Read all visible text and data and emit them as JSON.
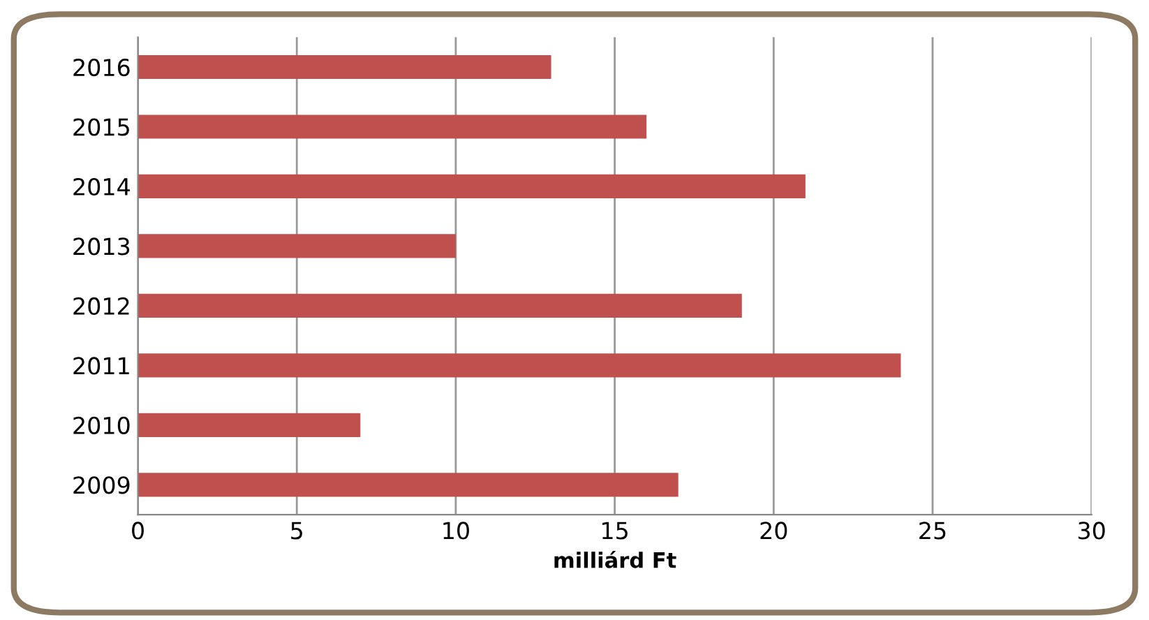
{
  "chart_data": {
    "type": "bar",
    "orientation": "horizontal",
    "categories": [
      "2016",
      "2015",
      "2014",
      "2013",
      "2012",
      "2011",
      "2010",
      "2009"
    ],
    "values": [
      13,
      16,
      21,
      10,
      19,
      24,
      7,
      17
    ],
    "color": "#c0504d",
    "xlabel": "milliárd Ft",
    "xlim": [
      0,
      30
    ],
    "xticks": [
      0,
      5,
      10,
      15,
      20,
      25,
      30
    ],
    "grid": "x",
    "legend": false
  }
}
